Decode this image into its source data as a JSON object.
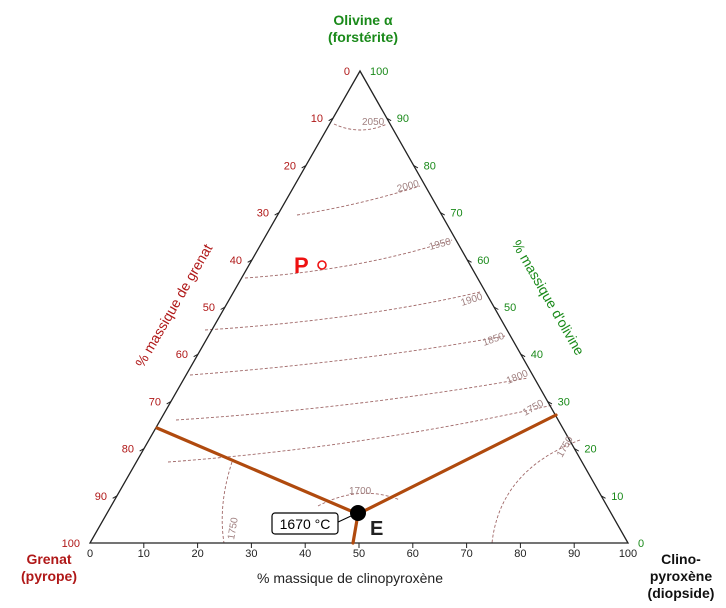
{
  "vertices": {
    "top": {
      "line1": "Olivine α",
      "line2": "(forstérite)"
    },
    "left": {
      "line1": "Grenat",
      "line2": "(pyrope)"
    },
    "right": {
      "line1": "Clino-",
      "line2": "pyroxène",
      "line3": "(diopside)"
    }
  },
  "axes": {
    "bottom": "% massique de clinopyroxène",
    "left": "% massique de grenat",
    "right": "% massique d'olivine"
  },
  "ticks": {
    "bottom": [
      "0",
      "10",
      "20",
      "30",
      "40",
      "50",
      "60",
      "70",
      "80",
      "90",
      "100"
    ],
    "left": [
      "0",
      "10",
      "20",
      "30",
      "40",
      "50",
      "60",
      "70",
      "80",
      "90",
      "100"
    ],
    "right": [
      "0",
      "10",
      "20",
      "30",
      "40",
      "50",
      "60",
      "70",
      "80",
      "90",
      "100"
    ]
  },
  "points": {
    "P": "P",
    "E": "E",
    "eutectic_temp": "1670 °C"
  },
  "isotherms": [
    "2050",
    "2000",
    "1950",
    "1900",
    "1850",
    "1800",
    "1750",
    "1700",
    "1750",
    "1750"
  ],
  "colors": {
    "olivine": "#1a8a1a",
    "grenat": "#b01818",
    "cotectic": "#b04a0e",
    "isotherm": "#a06868",
    "point_P": "#ee1111"
  }
}
